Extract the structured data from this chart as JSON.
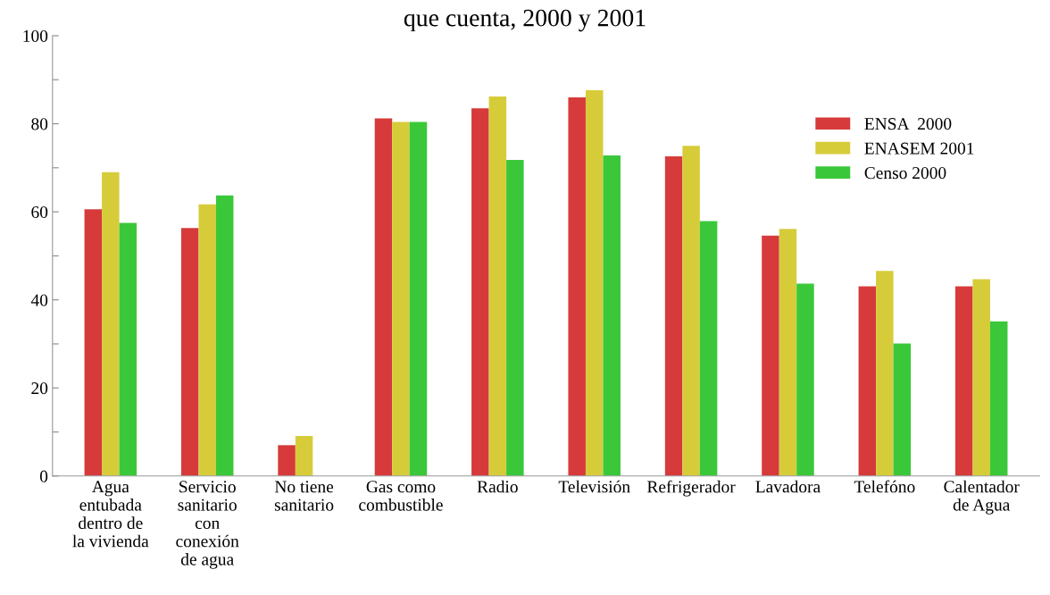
{
  "chart_data": {
    "type": "bar",
    "title": "que cuenta, 2000 y 2001",
    "categories": [
      "Agua\nentubada\ndentro de\nla vivienda",
      "Servicio\nsanitario\ncon\nconexión\nde agua",
      "No tiene\nsanitario",
      "Gas como\ncombustible",
      "Radio",
      "Televisión",
      "Refrigerador",
      "Lavadora",
      "Telefóno",
      "Calentador\nde Agua"
    ],
    "series": [
      {
        "name": "ENSA  2000",
        "color": "#d63a3a",
        "values": [
          60.6,
          56.3,
          7.0,
          81.2,
          83.5,
          86.0,
          72.6,
          54.6,
          43.1,
          43.1
        ]
      },
      {
        "name": "ENASEM 2001",
        "color": "#d6cc3a",
        "values": [
          69.0,
          61.7,
          9.1,
          80.4,
          86.2,
          87.6,
          75.0,
          56.1,
          46.6,
          44.7
        ]
      },
      {
        "name": "Censo 2000",
        "color": "#3ac83a",
        "values": [
          57.5,
          63.7,
          null,
          80.4,
          71.8,
          72.8,
          57.9,
          43.7,
          30.1,
          35.1
        ]
      }
    ],
    "ylim": [
      0,
      100
    ],
    "yticks": [
      0,
      {
        "value": 10,
        "label": null
      },
      20,
      {
        "value": 30,
        "label": null
      },
      40,
      {
        "value": 50,
        "label": null
      },
      60,
      {
        "value": 70,
        "label": null
      },
      80,
      {
        "value": 90,
        "label": null
      },
      100
    ],
    "grid": false,
    "legend": "top right"
  }
}
